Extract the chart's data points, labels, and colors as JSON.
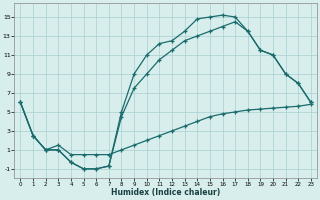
{
  "xlabel": "Humidex (Indice chaleur)",
  "background_color": "#d8eeed",
  "grid_color": "#aacfcf",
  "line_color": "#1a6b6b",
  "xlim": [
    -0.5,
    23.5
  ],
  "ylim": [
    -2,
    16.5
  ],
  "xticks": [
    0,
    1,
    2,
    3,
    4,
    5,
    6,
    7,
    8,
    9,
    10,
    11,
    12,
    13,
    14,
    15,
    16,
    17,
    18,
    19,
    20,
    21,
    22,
    23
  ],
  "yticks": [
    -1,
    1,
    3,
    5,
    7,
    9,
    11,
    13,
    15
  ],
  "curve1_x": [
    0,
    1,
    2,
    3,
    4,
    5,
    6,
    7,
    8,
    9,
    10,
    11,
    12,
    13,
    14,
    15,
    16,
    17,
    18,
    19,
    20,
    21,
    22,
    23
  ],
  "curve1_y": [
    6.0,
    2.5,
    1.0,
    1.0,
    -0.3,
    -1.0,
    -1.0,
    -0.7,
    5.0,
    9.0,
    11.0,
    12.2,
    12.5,
    13.5,
    14.8,
    15.0,
    15.2,
    15.0,
    13.5,
    11.5,
    11.0,
    9.0,
    8.0,
    6.0
  ],
  "curve2_x": [
    0,
    1,
    2,
    3,
    4,
    5,
    6,
    7,
    8,
    9,
    10,
    11,
    12,
    13,
    14,
    15,
    16,
    17,
    18,
    19,
    20,
    21,
    22,
    23
  ],
  "curve2_y": [
    6.0,
    2.5,
    1.0,
    1.0,
    -0.3,
    -1.0,
    -1.0,
    -0.7,
    4.5,
    7.5,
    9.0,
    10.5,
    11.5,
    12.5,
    13.0,
    13.5,
    14.0,
    14.5,
    13.5,
    11.5,
    11.0,
    9.0,
    8.0,
    6.0
  ],
  "curve3_x": [
    0,
    1,
    2,
    3,
    4,
    5,
    6,
    7,
    8,
    9,
    10,
    11,
    12,
    13,
    14,
    15,
    16,
    17,
    18,
    19,
    20,
    21,
    22,
    23
  ],
  "curve3_y": [
    6.0,
    2.5,
    1.0,
    1.5,
    0.5,
    0.5,
    0.5,
    0.5,
    1.0,
    1.5,
    2.0,
    2.5,
    3.0,
    3.5,
    4.0,
    4.5,
    4.8,
    5.0,
    5.2,
    5.3,
    5.4,
    5.5,
    5.6,
    5.8
  ]
}
